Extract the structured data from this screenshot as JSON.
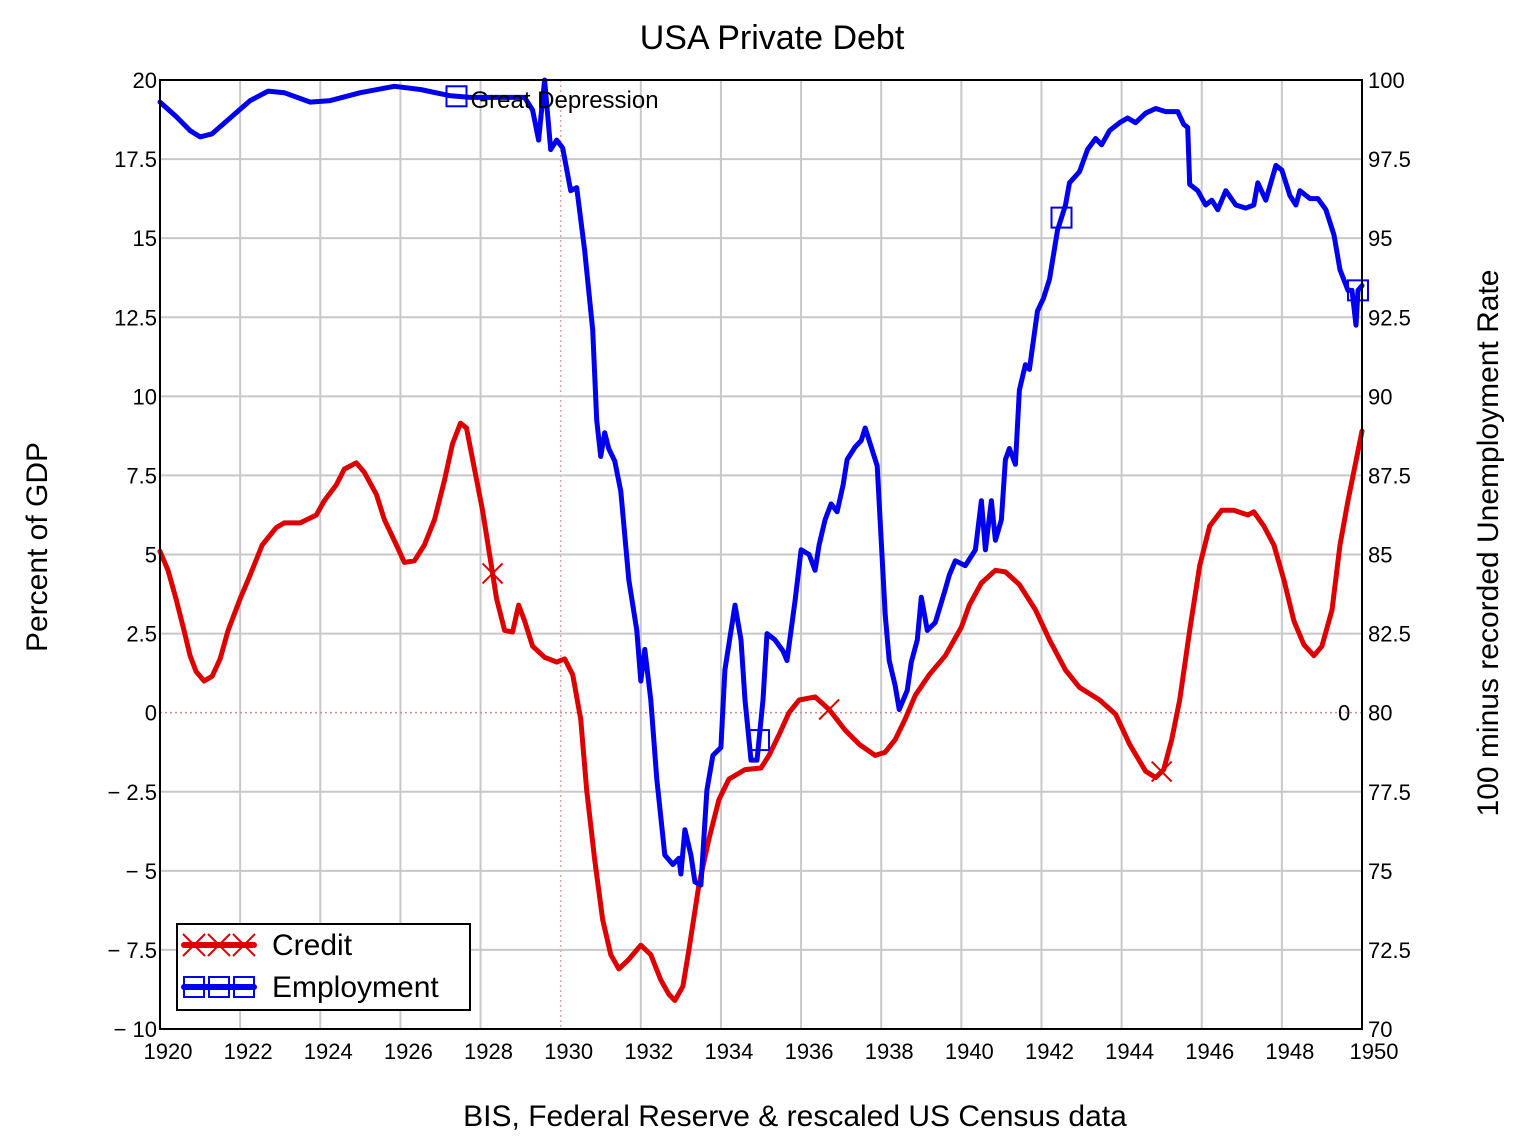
{
  "chart_data": {
    "type": "line",
    "title": "USA Private Debt",
    "xlabel": "BIS, Federal Reserve & rescaled US Census data",
    "ylabel": "Percent of GDP",
    "y2label": "100 minus recorded Unemployment Rate",
    "xlim": [
      1920,
      1950
    ],
    "ylim": [
      -10,
      20
    ],
    "y2lim": [
      70,
      100
    ],
    "grid": true,
    "legend": "bottom-left",
    "x_ticks": [
      "1920",
      "1922",
      "1924",
      "1926",
      "1928",
      "1930",
      "1932",
      "1934",
      "1936",
      "1938",
      "1940",
      "1942",
      "1944",
      "1946",
      "1948",
      "1950"
    ],
    "y_ticks": [
      "20",
      "17.5",
      "15",
      "12.5",
      "10",
      "7.5",
      "5",
      "2.5",
      "0",
      "− 2.5",
      "− 5",
      "− 7.5",
      "− 10"
    ],
    "y2_ticks": [
      "100",
      "97.5",
      "95",
      "92.5",
      "90",
      "87.5",
      "85",
      "82.5",
      "80",
      "77.5",
      "75",
      "72.5",
      "70"
    ],
    "annotations": [
      {
        "text": "Great Depression",
        "x": 1927.4,
        "y2": 99.5
      },
      {
        "text": "0",
        "x": 1949.6,
        "y": 0
      }
    ],
    "series": [
      {
        "name": "Credit",
        "axis": "left",
        "color": "#dd0000",
        "marker": "x",
        "markers_at": [
          1928.3,
          1936.7,
          1945.0
        ],
        "x": [
          1920,
          1920.2,
          1920.4,
          1920.6,
          1920.75,
          1920.9,
          1921.1,
          1921.3,
          1921.5,
          1921.7,
          1922,
          1922.25,
          1922.55,
          1922.9,
          1923.1,
          1923.5,
          1923.9,
          1924.1,
          1924.4,
          1924.6,
          1924.9,
          1925.1,
          1925.4,
          1925.6,
          1925.9,
          1926.1,
          1926.35,
          1926.6,
          1926.85,
          1927.1,
          1927.3,
          1927.5,
          1927.65,
          1927.85,
          1928.05,
          1928.25,
          1928.4,
          1928.6,
          1928.8,
          1928.95,
          1929.1,
          1929.3,
          1929.6,
          1929.9,
          1930.1,
          1930.3,
          1930.5,
          1930.65,
          1930.85,
          1931.05,
          1931.25,
          1931.45,
          1931.7,
          1932,
          1932.25,
          1932.5,
          1932.7,
          1932.85,
          1933.05,
          1933.2,
          1933.45,
          1933.7,
          1933.95,
          1934.2,
          1934.6,
          1935,
          1935.2,
          1935.45,
          1935.7,
          1935.95,
          1936.35,
          1936.7,
          1937.1,
          1937.45,
          1937.85,
          1938.1,
          1938.35,
          1938.6,
          1938.85,
          1939.2,
          1939.6,
          1940,
          1940.2,
          1940.5,
          1940.85,
          1941.1,
          1941.45,
          1941.85,
          1942.2,
          1942.6,
          1942.95,
          1943.45,
          1943.85,
          1944.2,
          1944.6,
          1944.85,
          1945.05,
          1945.25,
          1945.45,
          1945.7,
          1945.95,
          1946.2,
          1946.5,
          1946.8,
          1947.15,
          1947.3,
          1947.55,
          1947.8,
          1948.05,
          1948.3,
          1948.55,
          1948.8,
          1949,
          1949.25,
          1949.45,
          1949.65,
          1950
        ],
        "y": [
          5.1,
          4.5,
          3.6,
          2.6,
          1.8,
          1.3,
          1.0,
          1.15,
          1.7,
          2.6,
          3.6,
          4.35,
          5.3,
          5.85,
          6.0,
          6.0,
          6.25,
          6.7,
          7.2,
          7.7,
          7.9,
          7.6,
          6.9,
          6.1,
          5.3,
          4.75,
          4.8,
          5.3,
          6.1,
          7.35,
          8.5,
          9.15,
          9.0,
          7.7,
          6.4,
          4.8,
          3.6,
          2.6,
          2.55,
          3.4,
          2.9,
          2.1,
          1.75,
          1.6,
          1.7,
          1.2,
          -0.2,
          -2.45,
          -4.65,
          -6.55,
          -7.65,
          -8.1,
          -7.8,
          -7.35,
          -7.65,
          -8.45,
          -8.9,
          -9.1,
          -8.65,
          -7.5,
          -5.45,
          -4.0,
          -2.75,
          -2.1,
          -1.8,
          -1.75,
          -1.35,
          -0.7,
          0.0,
          0.4,
          0.5,
          0.1,
          -0.55,
          -1.0,
          -1.35,
          -1.25,
          -0.85,
          -0.2,
          0.55,
          1.2,
          1.8,
          2.7,
          3.4,
          4.1,
          4.5,
          4.45,
          4.05,
          3.25,
          2.3,
          1.35,
          0.8,
          0.4,
          -0.05,
          -1.0,
          -1.85,
          -2.05,
          -1.8,
          -0.85,
          0.4,
          2.6,
          4.65,
          5.9,
          6.4,
          6.4,
          6.25,
          6.35,
          5.9,
          5.3,
          4.2,
          2.9,
          2.15,
          1.8,
          2.1,
          3.25,
          5.3,
          6.7,
          8.9
        ]
      },
      {
        "name": "Employment",
        "axis": "right",
        "color": "#0000ee",
        "marker": "square",
        "markers_at": [
          1927.4,
          1934.95,
          1942.5,
          1949.9
        ],
        "x": [
          1920,
          1920.4,
          1920.75,
          1921,
          1921.3,
          1921.75,
          1922.25,
          1922.7,
          1923.1,
          1923.75,
          1924.25,
          1925,
          1925.85,
          1926.5,
          1927.25,
          1927.75,
          1929.1,
          1929.3,
          1929.45,
          1929.6,
          1929.75,
          1929.9,
          1930.05,
          1930.25,
          1930.4,
          1930.6,
          1930.8,
          1930.9,
          1931,
          1931.1,
          1931.2,
          1931.35,
          1931.5,
          1931.7,
          1931.9,
          1932,
          1932.1,
          1932.25,
          1932.4,
          1932.6,
          1932.8,
          1932.95,
          1933,
          1933.1,
          1933.25,
          1933.35,
          1933.5,
          1933.65,
          1933.8,
          1934,
          1934.1,
          1934.35,
          1934.5,
          1934.6,
          1934.75,
          1934.9,
          1935.05,
          1935.15,
          1935.35,
          1935.55,
          1935.65,
          1935.85,
          1936,
          1936.2,
          1936.35,
          1936.45,
          1936.6,
          1936.75,
          1936.9,
          1937.05,
          1937.15,
          1937.35,
          1937.5,
          1937.6,
          1937.7,
          1937.9,
          1938,
          1938.1,
          1938.2,
          1938.35,
          1938.45,
          1938.65,
          1938.75,
          1938.9,
          1939,
          1939.15,
          1939.35,
          1939.6,
          1939.7,
          1939.85,
          1940.1,
          1940.25,
          1940.35,
          1940.5,
          1940.6,
          1940.75,
          1940.85,
          1941,
          1941.1,
          1941.2,
          1941.35,
          1941.45,
          1941.6,
          1941.7,
          1941.9,
          1942.05,
          1942.2,
          1942.4,
          1942.6,
          1942.7,
          1942.95,
          1943.15,
          1943.35,
          1943.5,
          1943.7,
          1943.95,
          1944.15,
          1944.35,
          1944.6,
          1944.85,
          1945.1,
          1945.4,
          1945.55,
          1945.65,
          1945.7,
          1945.9,
          1946.1,
          1946.25,
          1946.4,
          1946.6,
          1946.85,
          1947.1,
          1947.3,
          1947.4,
          1947.6,
          1947.85,
          1948,
          1948.2,
          1948.35,
          1948.45,
          1948.7,
          1948.9,
          1949.1,
          1949.3,
          1949.45,
          1949.65,
          1949.75,
          1949.85,
          1949.9,
          1950
        ],
        "y": [
          99.3,
          98.85,
          98.4,
          98.2,
          98.3,
          98.8,
          99.35,
          99.65,
          99.6,
          99.3,
          99.35,
          99.6,
          99.8,
          99.7,
          99.5,
          99.45,
          99.45,
          99.05,
          98.1,
          100,
          97.8,
          98.1,
          97.85,
          96.5,
          96.6,
          94.6,
          92.1,
          89.25,
          88.1,
          88.85,
          88.35,
          87.95,
          87.0,
          84.2,
          82.6,
          81.0,
          82.0,
          80.4,
          77.9,
          75.5,
          75.2,
          75.4,
          74.9,
          76.3,
          75.5,
          74.65,
          74.55,
          77.55,
          78.65,
          78.9,
          81.35,
          83.4,
          82.3,
          80.4,
          78.5,
          78.5,
          80.4,
          82.5,
          82.3,
          81.95,
          81.65,
          83.55,
          85.15,
          85.0,
          84.5,
          85.3,
          86.1,
          86.6,
          86.35,
          87.2,
          88.0,
          88.4,
          88.6,
          89.0,
          88.6,
          87.8,
          85.45,
          83.1,
          81.65,
          80.85,
          80.1,
          80.7,
          81.6,
          82.3,
          83.65,
          82.6,
          82.85,
          83.9,
          84.35,
          84.8,
          84.65,
          84.95,
          85.15,
          86.7,
          85.15,
          86.7,
          85.45,
          86.1,
          88.0,
          88.35,
          87.85,
          90.2,
          91.0,
          90.85,
          92.7,
          93.1,
          93.7,
          95.25,
          96.05,
          96.75,
          97.1,
          97.8,
          98.15,
          97.95,
          98.4,
          98.65,
          98.8,
          98.65,
          98.95,
          99.1,
          99.0,
          99.0,
          98.6,
          98.5,
          96.7,
          96.5,
          96.05,
          96.2,
          95.9,
          96.5,
          96.05,
          95.95,
          96.05,
          96.75,
          96.2,
          97.3,
          97.15,
          96.35,
          96.05,
          96.5,
          96.25,
          96.25,
          95.9,
          95.1,
          94.0,
          93.35,
          93.35,
          92.25,
          93.35,
          93.5
        ]
      }
    ]
  }
}
